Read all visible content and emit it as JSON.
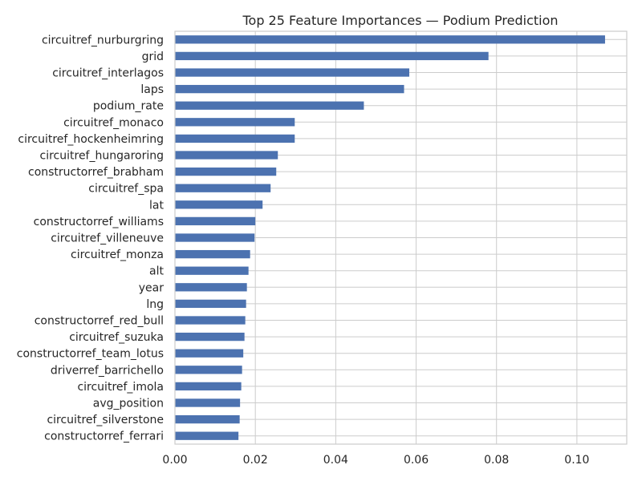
{
  "chart_data": {
    "type": "bar",
    "orientation": "horizontal",
    "title": "Top 25 Feature Importances — Podium Prediction",
    "xlabel": "",
    "ylabel": "",
    "xlim": [
      0,
      0.1124
    ],
    "x_ticks": [
      0.0,
      0.02,
      0.04,
      0.06,
      0.08,
      0.1
    ],
    "x_tick_labels": [
      "0.00",
      "0.02",
      "0.04",
      "0.06",
      "0.08",
      "0.10"
    ],
    "grid": true,
    "bar_color": "#4c72b0",
    "grid_color": "#cccccc",
    "categories": [
      "circuitref_nurburgring",
      "grid",
      "circuitref_interlagos",
      "laps",
      "podium_rate",
      "circuitref_monaco",
      "circuitref_hockenheimring",
      "circuitref_hungaroring",
      "constructorref_brabham",
      "circuitref_spa",
      "lat",
      "constructorref_williams",
      "circuitref_villeneuve",
      "circuitref_monza",
      "alt",
      "year",
      "lng",
      "constructorref_red_bull",
      "circuitref_suzuka",
      "constructorref_team_lotus",
      "driverref_barrichello",
      "circuitref_imola",
      "avg_position",
      "circuitref_silverstone",
      "constructorref_ferrari"
    ],
    "values": [
      0.107,
      0.078,
      0.0583,
      0.057,
      0.047,
      0.0298,
      0.0298,
      0.0256,
      0.0252,
      0.0238,
      0.0218,
      0.02,
      0.0198,
      0.0187,
      0.0183,
      0.0179,
      0.0177,
      0.0175,
      0.0173,
      0.017,
      0.0167,
      0.0165,
      0.0162,
      0.0161,
      0.0158
    ]
  }
}
